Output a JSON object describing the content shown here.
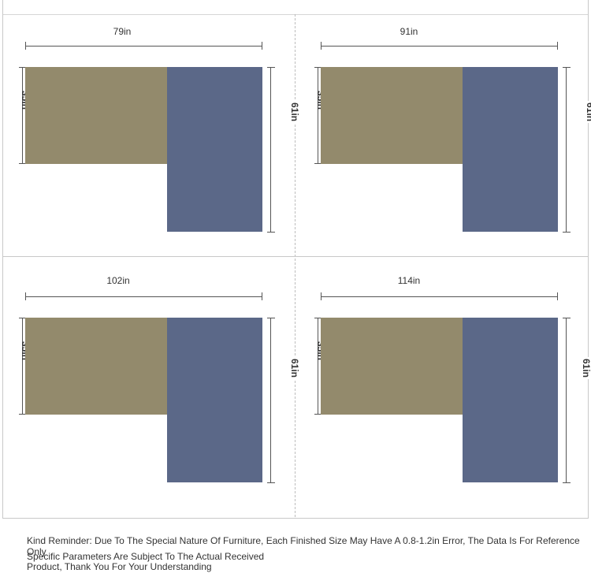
{
  "panels": [
    {
      "width_label": "79in",
      "depth_label": "35in",
      "length_label": "61in"
    },
    {
      "width_label": "91in",
      "depth_label": "35in",
      "length_label": "61in"
    },
    {
      "width_label": "102in",
      "depth_label": "35in",
      "length_label": "61in"
    },
    {
      "width_label": "114in",
      "depth_label": "35in",
      "length_label": "61in"
    }
  ],
  "colors": {
    "chaise_section": "#938a6c",
    "main_section": "#5b6888"
  },
  "note": {
    "line1": "Kind Reminder: Due To The Special Nature Of Furniture, Each Finished Size May Have A 0.8-1.2in Error, The Data Is For Reference Only",
    "line2": "Specific Parameters Are Subject To The Actual Received",
    "line3": "Product, Thank You For Your Understanding"
  }
}
